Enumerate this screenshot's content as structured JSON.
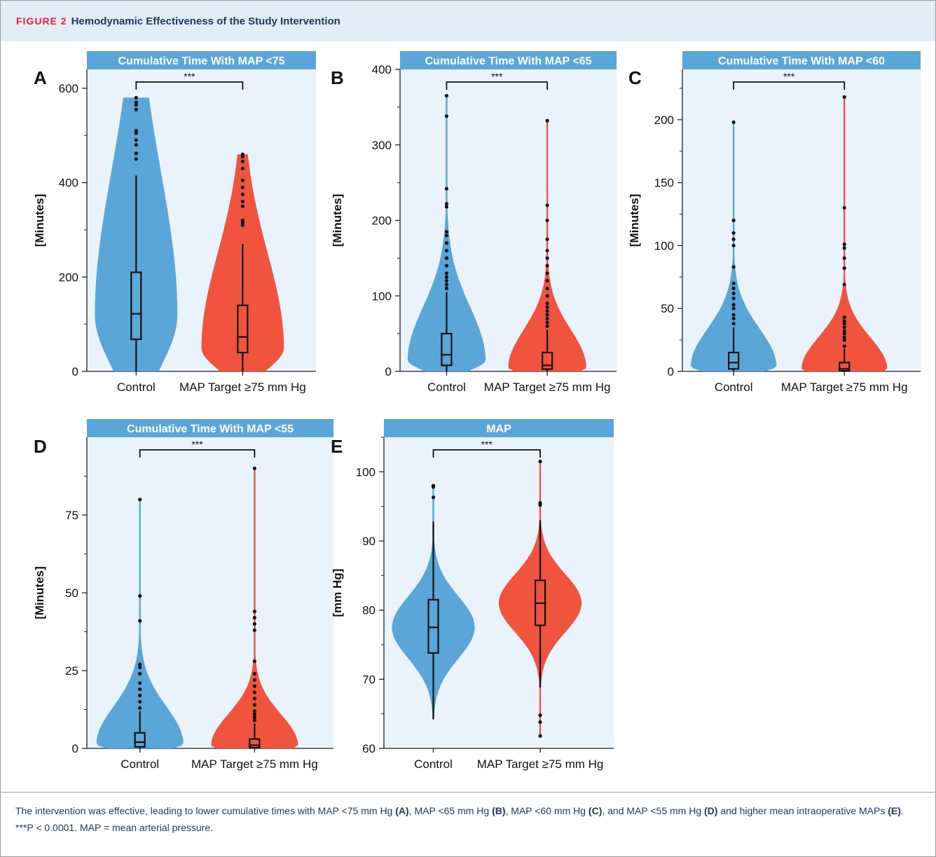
{
  "header": {
    "figure_label": "FIGURE 2",
    "title": "Hemodynamic Effectiveness of the Study Intervention"
  },
  "caption": {
    "intro": "The intervention was effective, leading to lower cumulative times with MAP <75 mm Hg ",
    "ref_a": "(A)",
    "mid1": ", MAP <65 mm Hg ",
    "ref_b": "(B)",
    "mid2": ", MAP <60 mm Hg ",
    "ref_c": "(C)",
    "mid3": ", and MAP <55 mm Hg ",
    "ref_d": "(D)",
    "mid4": " and higher mean intraoperative MAPs ",
    "ref_e": "(E)",
    "end": ". ***P < 0.0001. MAP = mean arterial pressure."
  },
  "colors": {
    "control": "#5aa6d9",
    "target": "#f0543f",
    "panel_bg": "#eaf2fb",
    "title_bar": "#5aa6d9",
    "box": "#111111"
  },
  "chart_data": [
    {
      "type": "violin",
      "panel": "A",
      "title": "Cumulative Time With MAP <75",
      "ylabel": "[Minutes]",
      "ylim": [
        0,
        640
      ],
      "yticks": [
        0,
        200,
        400,
        600
      ],
      "categories": [
        "Control",
        "MAP Target ≥75 mm Hg"
      ],
      "significance": "***",
      "series": [
        {
          "name": "Control",
          "min": 0,
          "q1": 68,
          "median": 122,
          "q3": 210,
          "whisker_high": 415,
          "kde_peak": 120,
          "kde_tail": 300,
          "outliers": [
            450,
            462,
            480,
            490,
            505,
            510,
            555,
            565,
            570,
            580
          ]
        },
        {
          "name": "MAP Target ≥75 mm Hg",
          "min": 0,
          "q1": 40,
          "median": 73,
          "q3": 140,
          "whisker_high": 270,
          "kde_peak": 50,
          "kde_tail": 200,
          "outliers": [
            310,
            315,
            320,
            350,
            360,
            375,
            390,
            405,
            430,
            445,
            455,
            460
          ]
        }
      ]
    },
    {
      "type": "violin",
      "panel": "B",
      "title": "Cumulative Time With MAP <65",
      "ylabel": "[Minutes]",
      "ylim": [
        0,
        400
      ],
      "yticks": [
        0,
        100,
        200,
        300,
        400
      ],
      "categories": [
        "Control",
        "MAP Target ≥75 mm Hg"
      ],
      "significance": "***",
      "series": [
        {
          "name": "Control",
          "min": 0,
          "q1": 8,
          "median": 22,
          "q3": 50,
          "whisker_high": 105,
          "kde_peak": 15,
          "kde_tail": 70,
          "outliers": [
            110,
            115,
            120,
            125,
            130,
            140,
            150,
            160,
            170,
            180,
            185,
            218,
            222,
            242,
            338,
            365
          ]
        },
        {
          "name": "MAP Target ≥75 mm Hg",
          "min": 0,
          "q1": 3,
          "median": 8,
          "q3": 25,
          "whisker_high": 55,
          "kde_peak": 5,
          "kde_tail": 50,
          "outliers": [
            60,
            65,
            70,
            75,
            80,
            85,
            90,
            100,
            110,
            120,
            130,
            140,
            150,
            160,
            175,
            200,
            220,
            332
          ]
        }
      ]
    },
    {
      "type": "violin",
      "panel": "C",
      "title": "Cumulative Time With MAP <60",
      "ylabel": "[Minutes]",
      "ylim": [
        0,
        240
      ],
      "yticks": [
        0,
        50,
        100,
        150,
        200
      ],
      "categories": [
        "Control",
        "MAP Target ≥75 mm Hg"
      ],
      "significance": "***",
      "series": [
        {
          "name": "Control",
          "min": 0,
          "q1": 2,
          "median": 7,
          "q3": 15,
          "whisker_high": 35,
          "kde_peak": 4,
          "kde_tail": 30,
          "outliers": [
            38,
            42,
            45,
            50,
            53,
            58,
            62,
            66,
            70,
            83,
            100,
            105,
            110,
            120,
            198
          ]
        },
        {
          "name": "MAP Target ≥75 mm Hg",
          "min": 0,
          "q1": 0.5,
          "median": 2,
          "q3": 7,
          "whisker_high": 18,
          "kde_peak": 2,
          "kde_tail": 25,
          "outliers": [
            20,
            25,
            27,
            30,
            32,
            35,
            38,
            40,
            43,
            69,
            82,
            90,
            98,
            101,
            130,
            218
          ]
        }
      ]
    },
    {
      "type": "violin",
      "panel": "D",
      "title": "Cumulative Time With MAP <55",
      "ylabel": "[Minutes]",
      "ylim": [
        0,
        100
      ],
      "yticks": [
        0,
        25,
        50,
        75
      ],
      "categories": [
        "Control",
        "MAP Target ≥75 mm Hg"
      ],
      "significance": "***",
      "series": [
        {
          "name": "Control",
          "min": 0,
          "q1": 0.5,
          "median": 2,
          "q3": 5,
          "whisker_high": 12,
          "kde_peak": 1.5,
          "kde_tail": 12,
          "outliers": [
            13,
            15,
            17,
            19,
            21,
            24,
            26,
            27,
            41,
            49,
            80
          ]
        },
        {
          "name": "MAP Target ≥75 mm Hg",
          "min": 0,
          "q1": 0.2,
          "median": 1,
          "q3": 3,
          "whisker_high": 8,
          "kde_peak": 1,
          "kde_tail": 10,
          "outliers": [
            9,
            10,
            11,
            12,
            14,
            16,
            18,
            20,
            22,
            24,
            28,
            38,
            40,
            42,
            44,
            90
          ]
        }
      ]
    },
    {
      "type": "violin",
      "panel": "E",
      "title": "MAP",
      "ylabel": "[mm Hg]",
      "ylim": [
        60,
        105
      ],
      "yticks": [
        60,
        70,
        80,
        90,
        100
      ],
      "categories": [
        "Control",
        "MAP Target ≥75 mm Hg"
      ],
      "significance": "***",
      "series": [
        {
          "name": "Control",
          "min": 64.2,
          "q1": 73.8,
          "median": 77.5,
          "q3": 81.5,
          "whisker_high": 92.8,
          "kde_peak": 77.5,
          "kde_tail": 4.5,
          "outliers": [
            96.3,
            97.8,
            98
          ]
        },
        {
          "name": "MAP Target ≥75 mm Hg",
          "min": 68.8,
          "q1": 77.8,
          "median": 81,
          "q3": 84.3,
          "whisker_high": 93,
          "kde_peak": 81,
          "kde_tail": 4.2,
          "outliers": [
            61.8,
            63.8,
            64.8,
            95.2,
            95.5,
            101.5
          ]
        }
      ]
    }
  ]
}
